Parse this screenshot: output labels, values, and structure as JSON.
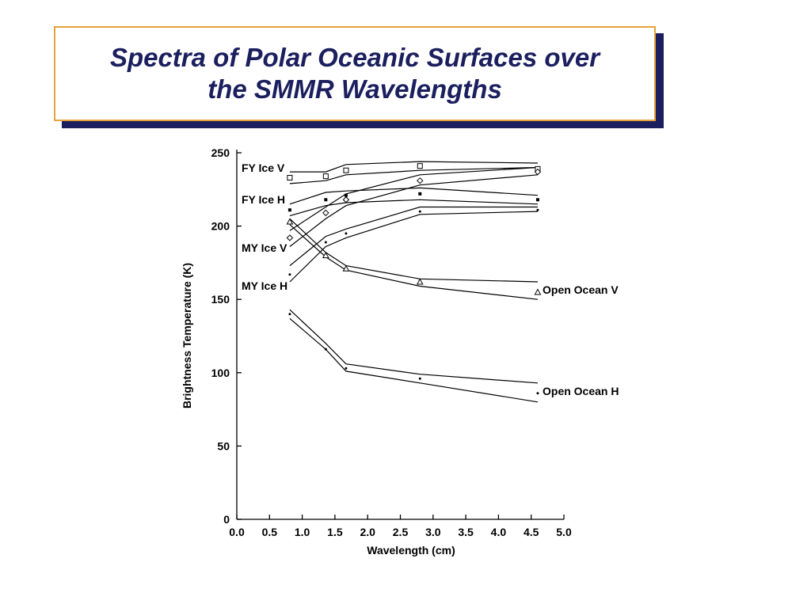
{
  "slide": {
    "title_line1": "Spectra of Polar Oceanic Surfaces over",
    "title_line2": "the SMMR Wavelengths",
    "colors": {
      "title_text": "#1b1f5e",
      "title_border": "#e6a23c",
      "title_shadow": "#1b1f5e"
    }
  },
  "chart_data": {
    "type": "line",
    "xlabel": "Wavelength (cm)",
    "ylabel": "Brightness Temperature (K)",
    "xlim": [
      0,
      5
    ],
    "ylim": [
      0,
      250
    ],
    "xticks": [
      "0.0",
      "0.5",
      "1.0",
      "1.5",
      "2.0",
      "2.5",
      "3.0",
      "3.5",
      "4.0",
      "4.5",
      "5.0"
    ],
    "yticks": [
      "0",
      "50",
      "100",
      "150",
      "200",
      "250"
    ],
    "grid": false,
    "series": [
      {
        "name": "FY Ice V",
        "marker": "square",
        "points": [
          [
            0.81,
            233
          ],
          [
            1.36,
            234
          ],
          [
            1.67,
            238
          ],
          [
            2.8,
            241
          ],
          [
            4.6,
            239
          ]
        ],
        "upper": [
          [
            0.81,
            237
          ],
          [
            1.36,
            237
          ],
          [
            1.67,
            242
          ],
          [
            2.8,
            244
          ],
          [
            4.6,
            243
          ]
        ],
        "lower": [
          [
            0.81,
            229
          ],
          [
            1.36,
            231
          ],
          [
            1.67,
            235
          ],
          [
            2.8,
            238
          ],
          [
            4.6,
            240
          ]
        ]
      },
      {
        "name": "FY Ice H",
        "marker": "filled-square",
        "points": [
          [
            0.81,
            211
          ],
          [
            1.36,
            218
          ],
          [
            1.67,
            221
          ],
          [
            2.8,
            222
          ],
          [
            4.6,
            218
          ]
        ],
        "upper": [
          [
            0.81,
            215
          ],
          [
            1.36,
            223
          ],
          [
            1.67,
            224
          ],
          [
            2.8,
            226
          ],
          [
            4.6,
            221
          ]
        ],
        "lower": [
          [
            0.81,
            207
          ],
          [
            1.36,
            214
          ],
          [
            1.67,
            216
          ],
          [
            2.8,
            218
          ],
          [
            4.6,
            215
          ]
        ]
      },
      {
        "name": "MY Ice V",
        "marker": "diamond",
        "points": [
          [
            0.81,
            192
          ],
          [
            1.36,
            209
          ],
          [
            1.67,
            218
          ],
          [
            2.8,
            231
          ],
          [
            4.6,
            237
          ]
        ],
        "upper": [
          [
            0.81,
            197
          ],
          [
            1.36,
            213
          ],
          [
            1.67,
            222
          ],
          [
            2.8,
            235
          ],
          [
            4.6,
            240
          ]
        ],
        "lower": [
          [
            0.81,
            186
          ],
          [
            1.36,
            205
          ],
          [
            1.67,
            214
          ],
          [
            2.8,
            228
          ],
          [
            4.6,
            235
          ]
        ]
      },
      {
        "name": "MY Ice H",
        "marker": "dot",
        "points": [
          [
            0.81,
            167
          ],
          [
            1.36,
            189
          ],
          [
            1.67,
            195
          ],
          [
            2.8,
            210
          ],
          [
            4.6,
            211
          ]
        ],
        "upper": [
          [
            0.81,
            173
          ],
          [
            1.36,
            193
          ],
          [
            1.67,
            198
          ],
          [
            2.8,
            213
          ],
          [
            4.6,
            213
          ]
        ],
        "lower": [
          [
            0.81,
            162
          ],
          [
            1.36,
            186
          ],
          [
            1.67,
            192
          ],
          [
            2.8,
            208
          ],
          [
            4.6,
            210
          ]
        ]
      },
      {
        "name": "Open Ocean V",
        "marker": "triangle",
        "points": [
          [
            0.81,
            203
          ],
          [
            1.36,
            180
          ],
          [
            1.67,
            171
          ],
          [
            2.8,
            162
          ],
          [
            4.6,
            155
          ]
        ],
        "upper": [
          [
            0.81,
            205
          ],
          [
            1.36,
            182
          ],
          [
            1.67,
            173
          ],
          [
            2.8,
            164
          ],
          [
            4.6,
            162
          ]
        ],
        "lower": [
          [
            0.81,
            201
          ],
          [
            1.36,
            179
          ],
          [
            1.67,
            170
          ],
          [
            2.8,
            159
          ],
          [
            4.6,
            150
          ]
        ]
      },
      {
        "name": "Open Ocean H",
        "marker": "dot",
        "points": [
          [
            0.81,
            140
          ],
          [
            1.36,
            116
          ],
          [
            1.67,
            103
          ],
          [
            2.8,
            96
          ],
          [
            4.6,
            86
          ]
        ],
        "upper": [
          [
            0.81,
            143
          ],
          [
            1.36,
            120
          ],
          [
            1.67,
            106
          ],
          [
            2.8,
            99
          ],
          [
            4.6,
            93
          ]
        ],
        "lower": [
          [
            0.81,
            137
          ],
          [
            1.36,
            116
          ],
          [
            1.67,
            101
          ],
          [
            2.8,
            93
          ],
          [
            4.6,
            80
          ]
        ]
      }
    ]
  }
}
